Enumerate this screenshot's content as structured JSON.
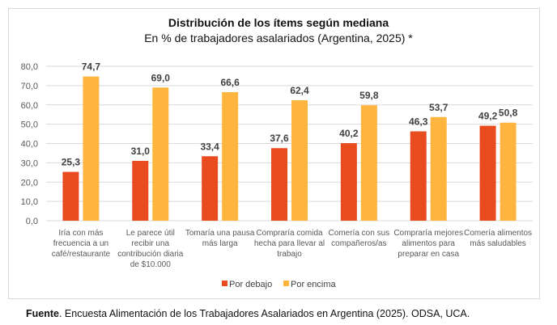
{
  "colors": {
    "below": "#E84C1E",
    "above": "#FDB540",
    "grid": "#d9d9d9"
  },
  "footnote": {
    "label": "Fuente",
    "text": ". Encuesta Alimentación de los Trabajadores Asalariados en Argentina (2025). ODSA, UCA."
  },
  "chart_data": {
    "type": "bar",
    "title": "Distribución de los ítems según mediana",
    "subtitle": "En % de trabajadores asalariados (Argentina, 2025) *",
    "xlabel": "",
    "ylabel": "",
    "ylim": [
      0,
      80
    ],
    "yticks": [
      "0,0",
      "10,0",
      "20,0",
      "30,0",
      "40,0",
      "50,0",
      "60,0",
      "70,0",
      "80,0"
    ],
    "ytick_values": [
      0,
      10,
      20,
      30,
      40,
      50,
      60,
      70,
      80
    ],
    "grid": true,
    "legend_position": "bottom",
    "categories": [
      [
        "Iría con más",
        "frecuencia a un",
        "café/restaurante"
      ],
      [
        "Le parece útil",
        "recibir una",
        "contribución diaria",
        "de $10.000"
      ],
      [
        "Tomaría una pausa",
        "más larga"
      ],
      [
        "Compraría comida",
        "hecha para llevar al",
        "trabajo"
      ],
      [
        "Comería con sus",
        "compañeros/as"
      ],
      [
        "Compraría mejores",
        "alimentos para",
        "preparar en casa"
      ],
      [
        "Comería alimentos",
        "más saludables"
      ]
    ],
    "series": [
      {
        "name": "Por debajo",
        "color_key": "below",
        "values": [
          25.3,
          31.0,
          33.4,
          37.6,
          40.2,
          46.3,
          49.2
        ],
        "labels": [
          "25,3",
          "31,0",
          "33,4",
          "37,6",
          "40,2",
          "46,3",
          "49,2"
        ]
      },
      {
        "name": "Por encima",
        "color_key": "above",
        "values": [
          74.7,
          69.0,
          66.6,
          62.4,
          59.8,
          53.7,
          50.8
        ],
        "labels": [
          "74,7",
          "69,0",
          "66,6",
          "62,4",
          "59,8",
          "53,7",
          "50,8"
        ]
      }
    ]
  }
}
